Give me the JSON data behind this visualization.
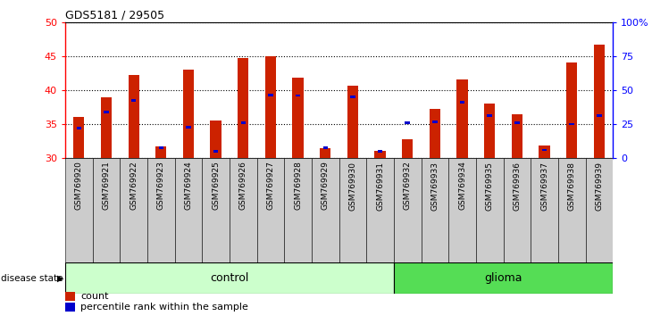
{
  "title": "GDS5181 / 29505",
  "samples": [
    "GSM769920",
    "GSM769921",
    "GSM769922",
    "GSM769923",
    "GSM769924",
    "GSM769925",
    "GSM769926",
    "GSM769927",
    "GSM769928",
    "GSM769929",
    "GSM769930",
    "GSM769931",
    "GSM769932",
    "GSM769933",
    "GSM769934",
    "GSM769935",
    "GSM769936",
    "GSM769937",
    "GSM769938",
    "GSM769939"
  ],
  "counts": [
    36.0,
    39.0,
    42.2,
    31.7,
    43.0,
    35.5,
    44.7,
    45.0,
    41.8,
    31.5,
    40.6,
    31.0,
    32.8,
    37.2,
    41.5,
    38.0,
    36.5,
    31.9,
    44.0,
    46.7
  ],
  "percentile_positions": [
    34.4,
    36.8,
    38.5,
    31.5,
    34.5,
    31.0,
    35.2,
    39.3,
    39.2,
    31.5,
    39.0,
    31.0,
    35.2,
    35.3,
    38.2,
    36.2,
    35.2,
    31.2,
    35.0,
    36.2
  ],
  "group_control_count": 12,
  "group_glioma_count": 8,
  "ylim_left": [
    30,
    50
  ],
  "ylim_right": [
    0,
    100
  ],
  "yticks_left": [
    30,
    35,
    40,
    45,
    50
  ],
  "yticks_right": [
    0,
    25,
    50,
    75,
    100
  ],
  "ytick_labels_right": [
    "0",
    "25",
    "50",
    "75",
    "100%"
  ],
  "bar_color": "#cc2200",
  "percentile_color": "#0000cc",
  "control_bg": "#ccffcc",
  "glioma_bg": "#55dd55",
  "plot_bg": "#ffffff",
  "tick_bg": "#cccccc",
  "control_label": "control",
  "glioma_label": "glioma",
  "disease_state_label": "disease state",
  "legend_count_label": "count",
  "legend_percentile_label": "percentile rank within the sample"
}
